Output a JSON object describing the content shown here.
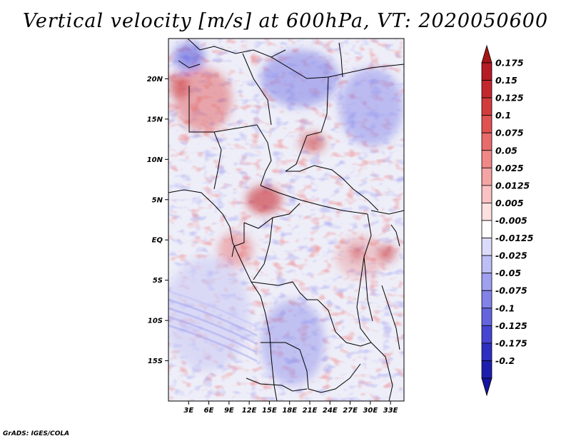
{
  "title": "Vertical velocity [m/s] at 600hPa, VT: 2020050600",
  "credit": "GrADS: IGES/COLA",
  "map": {
    "lon_range_deg": [
      0,
      35
    ],
    "lat_range_deg": [
      -20,
      25
    ],
    "lat_ticks": [
      {
        "value": 20,
        "label": "20N"
      },
      {
        "value": 15,
        "label": "15N"
      },
      {
        "value": 10,
        "label": "10N"
      },
      {
        "value": 5,
        "label": "5N"
      },
      {
        "value": 0,
        "label": "EQ"
      },
      {
        "value": -5,
        "label": "5S"
      },
      {
        "value": -10,
        "label": "10S"
      },
      {
        "value": -15,
        "label": "15S"
      }
    ],
    "lon_ticks": [
      {
        "value": 3,
        "label": "3E"
      },
      {
        "value": 6,
        "label": "6E"
      },
      {
        "value": 9,
        "label": "9E"
      },
      {
        "value": 12,
        "label": "12E"
      },
      {
        "value": 15,
        "label": "15E"
      },
      {
        "value": 18,
        "label": "18E"
      },
      {
        "value": 21,
        "label": "21E"
      },
      {
        "value": 24,
        "label": "24E"
      },
      {
        "value": 27,
        "label": "27E"
      },
      {
        "value": 30,
        "label": "30E"
      },
      {
        "value": 33,
        "label": "33E"
      }
    ]
  },
  "colorbar": {
    "levels": [
      {
        "label": "0.175",
        "color": "#b51c24"
      },
      {
        "label": "0.15",
        "color": "#c4282e"
      },
      {
        "label": "0.125",
        "color": "#d33c3c"
      },
      {
        "label": "0.1",
        "color": "#e05252"
      },
      {
        "label": "0.075",
        "color": "#e86c6c"
      },
      {
        "label": "0.05",
        "color": "#f08888"
      },
      {
        "label": "0.025",
        "color": "#f5a4a4"
      },
      {
        "label": "0.0125",
        "color": "#fac2c2"
      },
      {
        "label": "0.005",
        "color": "#fde0e0"
      },
      {
        "label": "-0.005",
        "color": "#ffffff"
      },
      {
        "label": "-0.0125",
        "color": "#dcdcfa"
      },
      {
        "label": "-0.025",
        "color": "#bebef6"
      },
      {
        "label": "-0.05",
        "color": "#a0a0f0"
      },
      {
        "label": "-0.075",
        "color": "#8282e8"
      },
      {
        "label": "-0.1",
        "color": "#6464de"
      },
      {
        "label": "-0.125",
        "color": "#4646d2"
      },
      {
        "label": "-0.175",
        "color": "#2e2ec0"
      },
      {
        "label": "-0.2",
        "color": "#1e1eae"
      }
    ],
    "top_color": "#a51616",
    "bottom_color": "#14149e"
  }
}
